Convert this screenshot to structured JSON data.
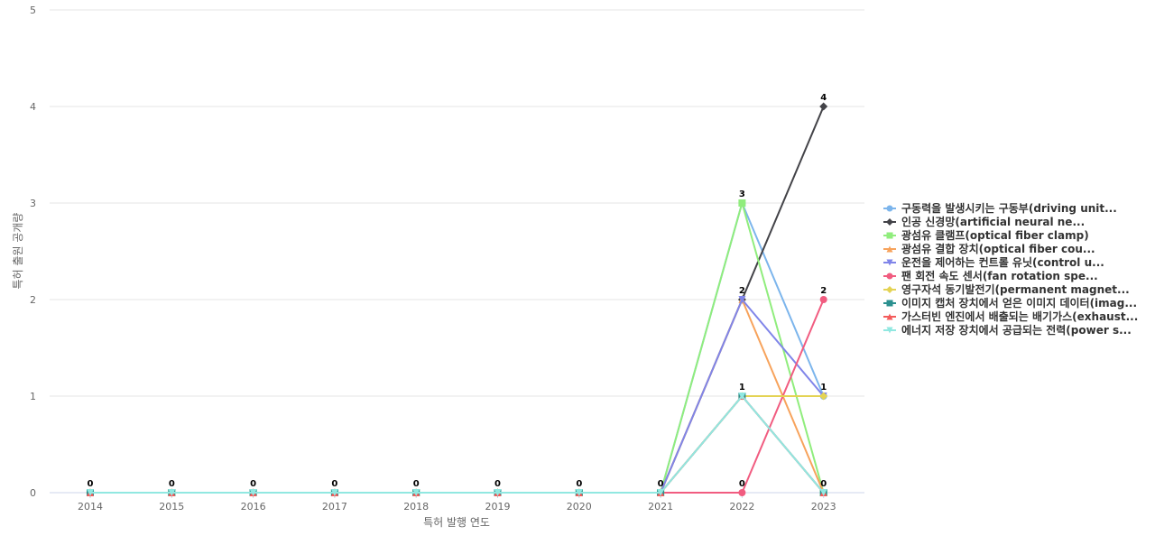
{
  "chart_data": {
    "type": "line",
    "xlabel": "특허 발행 연도",
    "ylabel": "특허 출원 공개량",
    "x": [
      "2014",
      "2015",
      "2016",
      "2017",
      "2018",
      "2019",
      "2020",
      "2021",
      "2022",
      "2023"
    ],
    "ylim": [
      0,
      5
    ],
    "yticks": [
      "0",
      "1",
      "2",
      "3",
      "4",
      "5"
    ],
    "grid": true,
    "legend_position": "right",
    "series": [
      {
        "name": "구동력을 발생시키는 구동부(driving unit...",
        "color": "#7cb5ec",
        "marker": "circle",
        "values": [
          0,
          0,
          0,
          0,
          0,
          0,
          0,
          0,
          3,
          1
        ]
      },
      {
        "name": "인공 신경망(artificial neural ne...",
        "color": "#434348",
        "marker": "diamond",
        "values": [
          0,
          0,
          0,
          0,
          0,
          0,
          0,
          0,
          2,
          4
        ]
      },
      {
        "name": "광섬유 클램프(optical fiber clamp)",
        "color": "#90ed7d",
        "marker": "square",
        "values": [
          0,
          0,
          0,
          0,
          0,
          0,
          0,
          0,
          3,
          0
        ]
      },
      {
        "name": "광섬유 결합 장치(optical fiber cou...",
        "color": "#f7a35c",
        "marker": "triangle",
        "values": [
          0,
          0,
          0,
          0,
          0,
          0,
          0,
          0,
          2,
          0
        ]
      },
      {
        "name": "운전을 제어하는 컨트롤 유닛(control u...",
        "color": "#8085e9",
        "marker": "triangle-down",
        "values": [
          0,
          0,
          0,
          0,
          0,
          0,
          0,
          0,
          2,
          1
        ]
      },
      {
        "name": "팬 회전 속도 센서(fan rotation spe...",
        "color": "#f15c80",
        "marker": "circle",
        "values": [
          0,
          0,
          0,
          0,
          0,
          0,
          0,
          0,
          0,
          2
        ]
      },
      {
        "name": "영구자석 동기발전기(permanent magnet...",
        "color": "#e4d354",
        "marker": "diamond",
        "values": [
          0,
          0,
          0,
          0,
          0,
          0,
          0,
          0,
          1,
          1
        ]
      },
      {
        "name": "이미지 캡처 장치에서 얻은 이미지 데이터(imag...",
        "color": "#2b908f",
        "marker": "square",
        "values": [
          0,
          0,
          0,
          0,
          0,
          0,
          0,
          0,
          1,
          0
        ]
      },
      {
        "name": "가스터빈 엔진에서 배출되는 배기가스(exhaust...",
        "color": "#f45b5b",
        "marker": "triangle",
        "values": [
          0,
          0,
          0,
          0,
          0,
          0,
          0,
          0,
          1,
          0
        ]
      },
      {
        "name": "에너지 저장 장치에서 공급되는 전력(power s...",
        "color": "#91e8e1",
        "marker": "triangle-down",
        "values": [
          0,
          0,
          0,
          0,
          0,
          0,
          0,
          0,
          1,
          0
        ]
      }
    ],
    "data_labels": [
      {
        "x": "2014",
        "value": "0"
      },
      {
        "x": "2015",
        "value": "0"
      },
      {
        "x": "2016",
        "value": "0"
      },
      {
        "x": "2017",
        "value": "0"
      },
      {
        "x": "2018",
        "value": "0"
      },
      {
        "x": "2019",
        "value": "0"
      },
      {
        "x": "2020",
        "value": "0"
      },
      {
        "x": "2021",
        "value": "0"
      },
      {
        "x": "2022",
        "y": 3,
        "value": "3"
      },
      {
        "x": "2022",
        "y": 2,
        "value": "2"
      },
      {
        "x": "2022",
        "y": 1,
        "value": "1"
      },
      {
        "x": "2022",
        "y": 0,
        "value": "0"
      },
      {
        "x": "2023",
        "y": 4,
        "value": "4"
      },
      {
        "x": "2023",
        "y": 2,
        "value": "2"
      },
      {
        "x": "2023",
        "y": 1,
        "value": "1"
      },
      {
        "x": "2023",
        "y": 0,
        "value": "0"
      }
    ]
  }
}
